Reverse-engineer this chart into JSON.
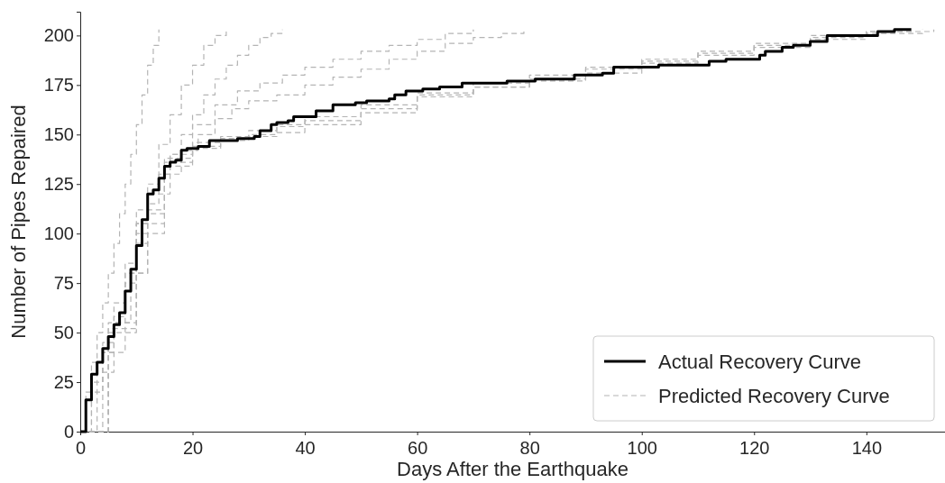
{
  "chart_data": {
    "type": "step",
    "xlabel": "Days After the Earthquake",
    "ylabel": "Number of Pipes Repaired",
    "xlim": [
      0,
      154
    ],
    "ylim": [
      0,
      212
    ],
    "xticks": [
      0,
      20,
      40,
      60,
      80,
      100,
      120,
      140
    ],
    "yticks": [
      0,
      25,
      50,
      75,
      100,
      125,
      150,
      175,
      200
    ],
    "grid": false,
    "legend": "bottom right",
    "series": [
      {
        "name": "Actual Recovery Curve",
        "color": "#000000",
        "line_style": "solid",
        "x": [
          0,
          1,
          2,
          3,
          4,
          5,
          6,
          7,
          8,
          9,
          10,
          11,
          12,
          13,
          14,
          15,
          16,
          17,
          18,
          19,
          21,
          23,
          28,
          31,
          32,
          34,
          35,
          37,
          38,
          42,
          45,
          49,
          51,
          55,
          56,
          58,
          61,
          64,
          68,
          76,
          81,
          88,
          93,
          95,
          103,
          112,
          115,
          121,
          122,
          125,
          127,
          130,
          133,
          142,
          145,
          148
        ],
        "values": [
          0,
          16,
          29,
          35,
          42,
          48,
          54,
          60,
          71,
          82,
          94,
          107,
          120,
          122,
          128,
          134,
          136,
          137,
          142,
          143,
          144,
          147,
          148,
          149,
          152,
          155,
          156,
          157,
          159,
          162,
          165,
          166,
          167,
          168,
          170,
          172,
          173,
          174,
          176,
          177,
          178,
          180,
          181,
          184,
          185,
          187,
          188,
          190,
          192,
          194,
          195,
          197,
          200,
          202,
          203,
          203
        ]
      },
      {
        "name": "Predicted Recovery Curve",
        "color": "#b4b4b4",
        "line_style": "dashed",
        "x": [
          0,
          1,
          2,
          3,
          4,
          5,
          6,
          7,
          8,
          9,
          10,
          11,
          12,
          13,
          14
        ],
        "values": [
          0,
          20,
          35,
          50,
          65,
          80,
          95,
          110,
          125,
          140,
          155,
          170,
          185,
          195,
          203
        ]
      },
      {
        "color": "#b4b4b4",
        "line_style": "dashed",
        "x": [
          0,
          2,
          4,
          6,
          8,
          10,
          12,
          14,
          16,
          18,
          20,
          22,
          24,
          26
        ],
        "values": [
          0,
          25,
          45,
          65,
          85,
          105,
          125,
          145,
          160,
          175,
          185,
          195,
          200,
          203
        ]
      },
      {
        "color": "#b4b4b4",
        "line_style": "dashed",
        "x": [
          0,
          2,
          4,
          6,
          8,
          10,
          12,
          14,
          16,
          18,
          20,
          22,
          24,
          26,
          28,
          30,
          32,
          34,
          36
        ],
        "values": [
          0,
          20,
          40,
          58,
          75,
          95,
          115,
          130,
          140,
          150,
          160,
          170,
          178,
          185,
          190,
          195,
          199,
          201,
          203
        ]
      },
      {
        "color": "#b4b4b4",
        "line_style": "dashed",
        "x": [
          0,
          3,
          6,
          9,
          12,
          15,
          18,
          21,
          24,
          27,
          30,
          35,
          40,
          45,
          50,
          55,
          60,
          65,
          70,
          75,
          79
        ],
        "values": [
          0,
          30,
          55,
          80,
          110,
          130,
          142,
          150,
          158,
          163,
          167,
          170,
          175,
          179,
          183,
          188,
          192,
          196,
          199,
          201,
          203
        ]
      },
      {
        "color": "#b4b4b4",
        "line_style": "dashed",
        "x": [
          0,
          4,
          8,
          12,
          16,
          20,
          24,
          28,
          32,
          36,
          40,
          45,
          50,
          55,
          60,
          65,
          70
        ],
        "values": [
          0,
          40,
          80,
          120,
          140,
          155,
          165,
          172,
          176,
          180,
          184,
          188,
          192,
          195,
          198,
          201,
          203
        ]
      },
      {
        "color": "#b4b4b4",
        "line_style": "dashed",
        "x": [
          0,
          5,
          10,
          15,
          20,
          25,
          30,
          35,
          40,
          50,
          60,
          70,
          80,
          90,
          100,
          110,
          120,
          130,
          140,
          150
        ],
        "values": [
          0,
          55,
          112,
          138,
          146,
          148,
          150,
          154,
          157,
          163,
          170,
          174,
          177,
          181,
          186,
          190,
          194,
          198,
          201,
          203
        ]
      },
      {
        "color": "#b4b4b4",
        "line_style": "dashed",
        "x": [
          0,
          5,
          10,
          15,
          20,
          25,
          30,
          35,
          40,
          50,
          60,
          70,
          80,
          90,
          100,
          110,
          120,
          130,
          140,
          148
        ],
        "values": [
          0,
          50,
          100,
          134,
          143,
          147,
          149,
          151,
          155,
          161,
          169,
          174,
          178,
          183,
          188,
          192,
          196,
          199,
          202,
          203
        ]
      },
      {
        "color": "#b4b4b4",
        "line_style": "dashed",
        "x": [
          0,
          5,
          10,
          15,
          20,
          25,
          30,
          35,
          40,
          50,
          60,
          70,
          80,
          90,
          100,
          110,
          120,
          130,
          140,
          152
        ],
        "values": [
          0,
          52,
          105,
          136,
          144,
          149,
          152,
          155,
          159,
          165,
          171,
          176,
          180,
          184,
          187,
          191,
          195,
          200,
          202,
          203
        ]
      }
    ]
  }
}
